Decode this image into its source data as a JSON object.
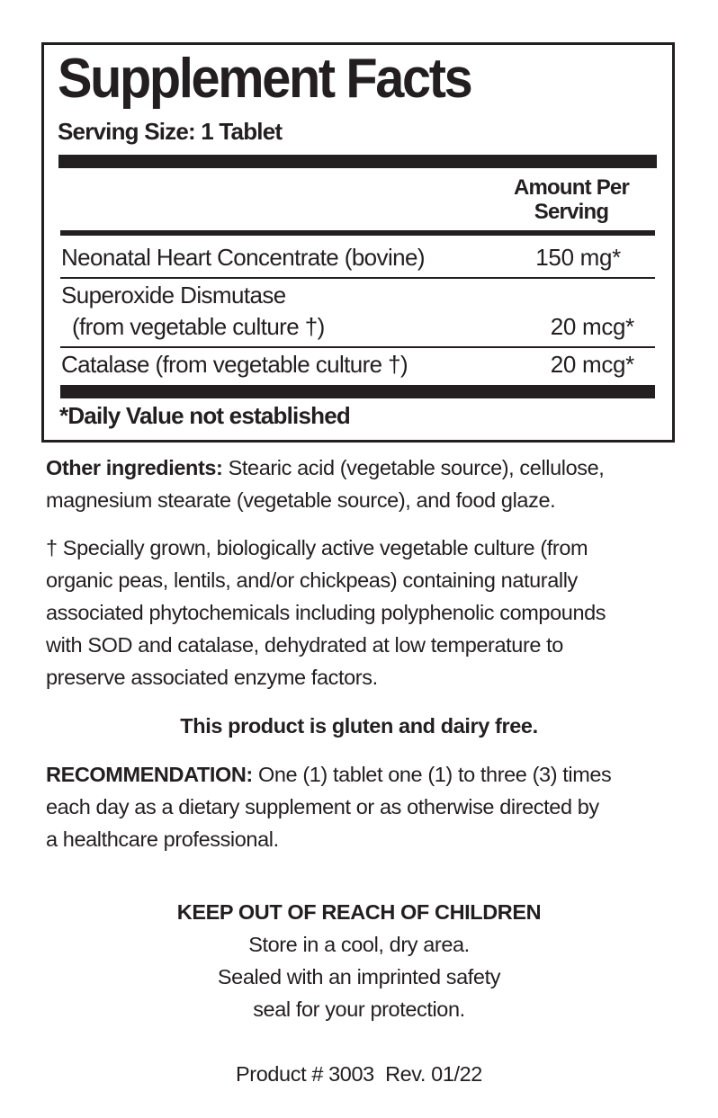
{
  "facts": {
    "title": "Supplement Facts",
    "serving_size": "Serving Size: 1 Tablet",
    "amount_header_line1": "Amount Per",
    "amount_header_line2": "Serving",
    "rows": [
      {
        "name": "Neonatal Heart Concentrate (bovine)",
        "amount": "150 mg*"
      },
      {
        "name": "Superoxide Dismutase",
        "name_line2": "(from vegetable culture †)",
        "amount": "20 mcg*"
      },
      {
        "name": "Catalase (from vegetable culture †)",
        "amount": "20 mcg*"
      }
    ],
    "footnote": "*Daily Value not established"
  },
  "other_ingredients": {
    "label": "Other ingredients:",
    "line1": " Stearic acid (vegetable source), cellulose,",
    "line2": "magnesium stearate (vegetable source), and food glaze."
  },
  "culture_note": [
    "† Specially grown, biologically active vegetable culture (from",
    "organic peas, lentils, and/or chickpeas) containing naturally",
    "associated phytochemicals including polyphenolic compounds",
    "with SOD and catalase, dehydrated at low temperature to",
    "preserve associated enzyme factors."
  ],
  "gluten_dairy": "This product is gluten and dairy free.",
  "recommendation": {
    "label": "RECOMMENDATION:",
    "line1": " One (1) tablet one (1) to three (3) times",
    "line2": "each day as a dietary supplement or as otherwise directed by",
    "line3": "a healthcare professional."
  },
  "warning": "KEEP OUT OF REACH OF CHILDREN",
  "storage": [
    "Store in a cool, dry area.",
    "Sealed with an imprinted safety",
    "seal for your protection."
  ],
  "product_number": "Product # 3003  Rev. 01/22"
}
